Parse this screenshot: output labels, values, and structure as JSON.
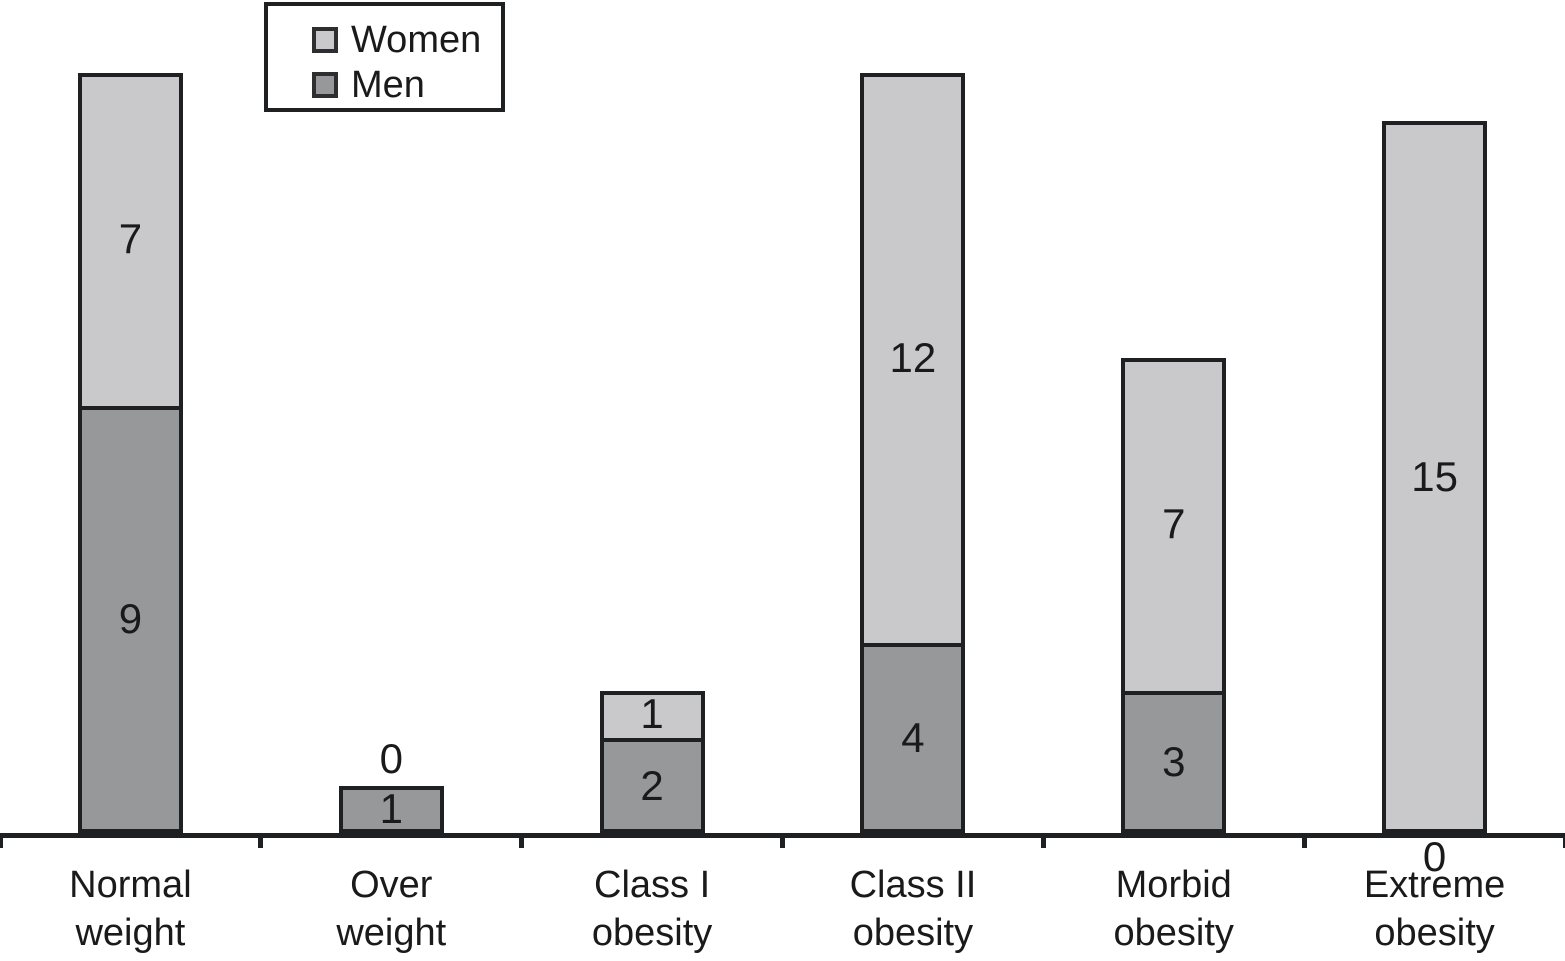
{
  "chart_data": {
    "type": "bar",
    "stacked": true,
    "orientation": "vertical",
    "title": "",
    "xlabel": "",
    "ylabel": "",
    "grid": false,
    "y_axis_shown": false,
    "ylim": [
      0,
      16.5
    ],
    "categories": [
      "Normal weight",
      "Over weight",
      "Class I obesity",
      "Class II obesity",
      "Morbid obesity",
      "Extreme obesity"
    ],
    "category_label_lines": [
      [
        "Normal",
        "weight"
      ],
      [
        "Over",
        "weight"
      ],
      [
        "Class I",
        "obesity"
      ],
      [
        "Class II",
        "obesity"
      ],
      [
        "Morbid",
        "obesity"
      ],
      [
        "Extreme",
        "obesity"
      ]
    ],
    "series": [
      {
        "name": "Men",
        "color": "#97989a",
        "values": [
          9,
          1,
          2,
          4,
          3,
          0
        ]
      },
      {
        "name": "Women",
        "color": "#c9c9cb",
        "values": [
          7,
          0,
          1,
          12,
          7,
          15
        ]
      }
    ],
    "totals": [
      16,
      1,
      3,
      16,
      10,
      15
    ],
    "value_labels": {
      "shown": true,
      "color": "#1a1a1a",
      "zero_placement": "outside bar: women 0 above bar top, men 0 below axis"
    },
    "legend": {
      "position": "top-left",
      "entries": [
        {
          "label": "Women",
          "swatch_color": "#c9c9cb"
        },
        {
          "label": "Men",
          "swatch_color": "#97989a"
        }
      ]
    },
    "colors": {
      "women_fill": "#c9c9cb",
      "men_fill": "#97989a",
      "bar_border": "#1f2022",
      "axis": "#1f2022",
      "text": "#1a1a1a",
      "background": "#ffffff"
    }
  }
}
